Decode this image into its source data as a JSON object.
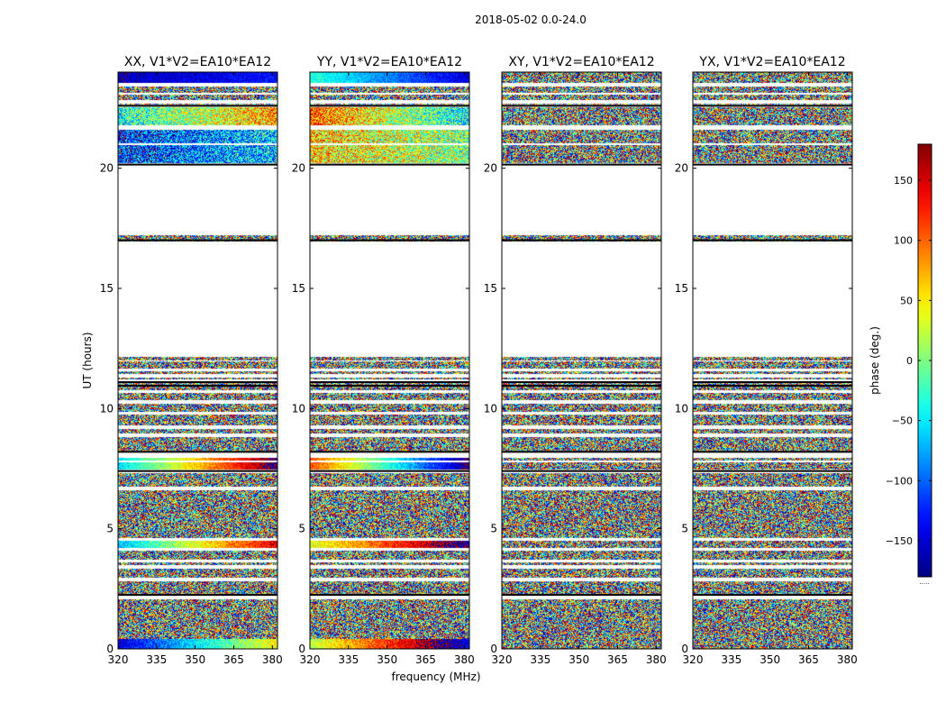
{
  "figure": {
    "suptitle": "2018-05-02 0.0-24.0"
  },
  "chart_data": {
    "type": "heatmap",
    "panels": [
      {
        "title": "XX, V1*V2=EA10*EA12",
        "pattern": "XX"
      },
      {
        "title": "YY, V1*V2=EA10*EA12",
        "pattern": "YY"
      },
      {
        "title": "XY, V1*V2=EA10*EA12",
        "pattern": "XY"
      },
      {
        "title": "YX, V1*V2=EA10*EA12",
        "pattern": "YX"
      }
    ],
    "xlabel": "frequency (MHz)",
    "ylabel": "UT (hours)",
    "xlim": [
      320,
      382
    ],
    "ylim": [
      0,
      24
    ],
    "xticks": [
      320,
      335,
      350,
      365,
      380
    ],
    "yticks": [
      0,
      5,
      10,
      15,
      20
    ],
    "colorbar": {
      "label": "phase (deg.)",
      "range": [
        -180,
        180
      ],
      "ticks": [
        -150,
        -100,
        -50,
        0,
        50,
        100,
        150
      ],
      "colormap": "jet",
      "bottom_marker": "....."
    },
    "data_blocks_hours": [
      [
        0.0,
        0.4
      ],
      [
        0.4,
        2.05
      ],
      [
        2.2,
        2.8
      ],
      [
        2.95,
        3.35
      ],
      [
        3.5,
        3.6
      ],
      [
        3.7,
        4.1
      ],
      [
        4.2,
        4.5
      ],
      [
        4.6,
        6.6
      ],
      [
        6.75,
        7.3
      ],
      [
        7.45,
        7.75
      ],
      [
        7.85,
        7.95
      ],
      [
        8.2,
        8.8
      ],
      [
        8.95,
        9.15
      ],
      [
        9.3,
        9.75
      ],
      [
        9.85,
        10.2
      ],
      [
        10.35,
        10.65
      ],
      [
        10.75,
        11.05
      ],
      [
        11.2,
        11.3
      ],
      [
        11.45,
        11.55
      ],
      [
        11.65,
        11.95
      ],
      [
        12.0,
        12.15
      ],
      [
        16.95,
        17.2
      ],
      [
        20.2,
        20.95
      ],
      [
        21.05,
        21.6
      ],
      [
        21.8,
        22.55
      ],
      [
        22.65,
        22.7
      ],
      [
        22.85,
        23.05
      ],
      [
        23.15,
        23.4
      ],
      [
        23.55,
        24.0
      ]
    ],
    "flag_lines_hours": [
      2.25,
      7.4,
      8.2,
      10.95,
      11.1,
      17.0,
      20.15,
      22.6
    ]
  }
}
